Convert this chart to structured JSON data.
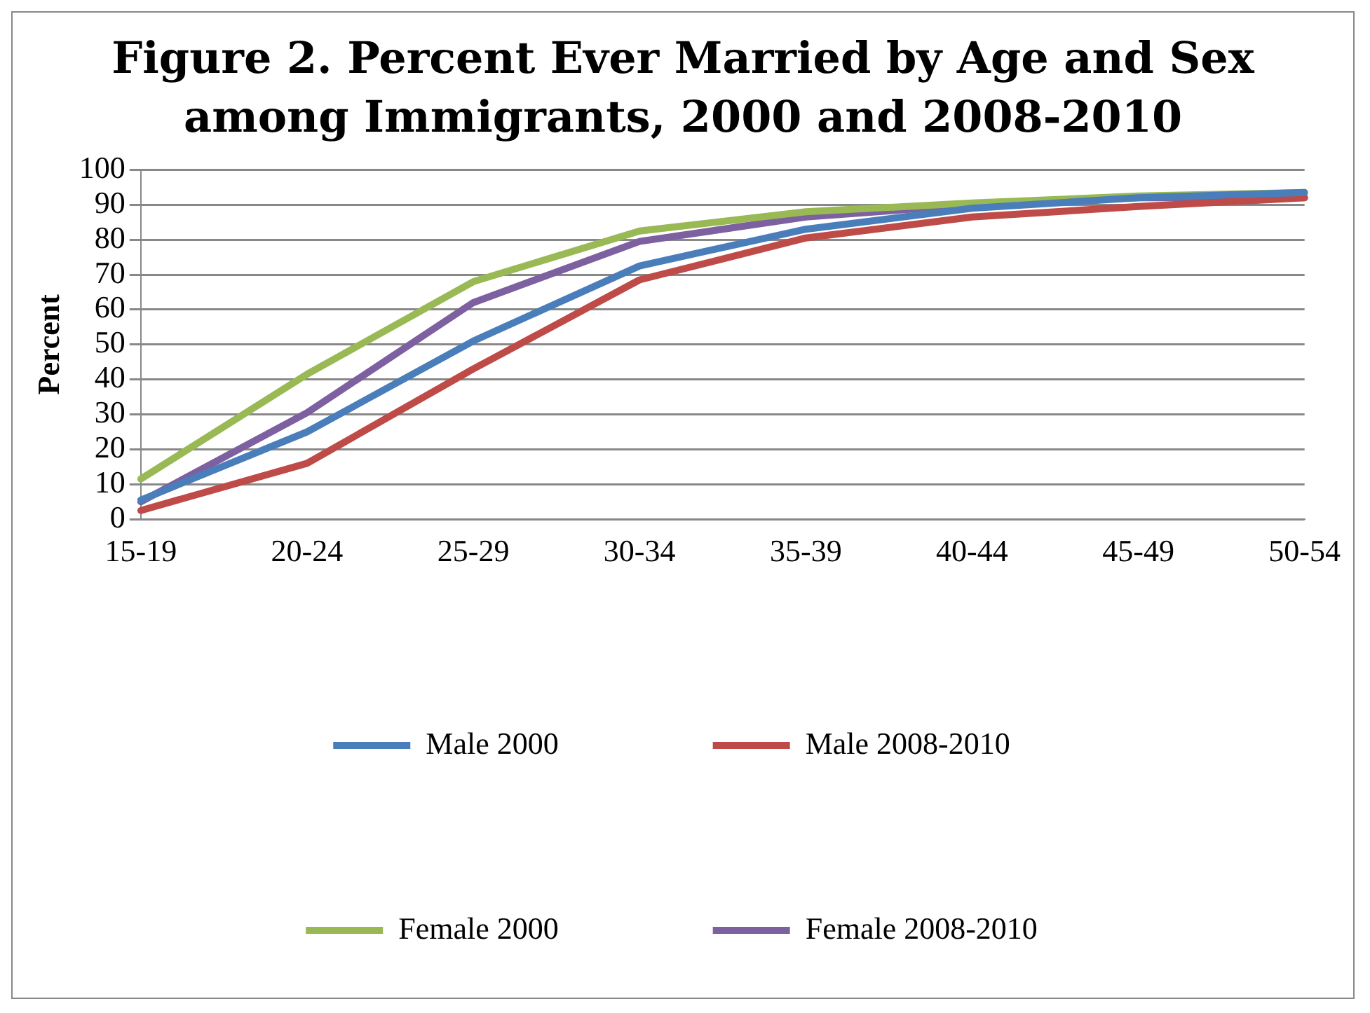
{
  "chart_data": {
    "type": "line",
    "title": "Figure 2. Percent Ever Married by Age and Sex among Immigrants, 2000 and 2008-2010",
    "ylabel": "Percent",
    "categories": [
      "15-19",
      "20-24",
      "25-29",
      "30-34",
      "35-39",
      "40-44",
      "45-49",
      "50-54"
    ],
    "series": [
      {
        "name": "Male 2000",
        "color": "#4a7ebb",
        "values": [
          5.5,
          25,
          51,
          72.5,
          83,
          89,
          92,
          93.5
        ]
      },
      {
        "name": "Male 2008-2010",
        "color": "#be4b48",
        "values": [
          2.5,
          16,
          43,
          68.5,
          80.5,
          86.5,
          89.5,
          92
        ]
      },
      {
        "name": "Female 2000",
        "color": "#98b954",
        "values": [
          11.5,
          41.5,
          68,
          82.5,
          88,
          90.5,
          92.5,
          93.5
        ]
      },
      {
        "name": "Female 2008-2010",
        "color": "#7d60a0",
        "values": [
          5,
          30.5,
          62,
          79.5,
          86.5,
          90,
          92,
          92
        ]
      }
    ],
    "ylim": [
      0,
      100
    ],
    "yticks": [
      0,
      10,
      20,
      30,
      40,
      50,
      60,
      70,
      80,
      90,
      100
    ],
    "grid": "y",
    "legend": "bottom",
    "marker": "none"
  }
}
